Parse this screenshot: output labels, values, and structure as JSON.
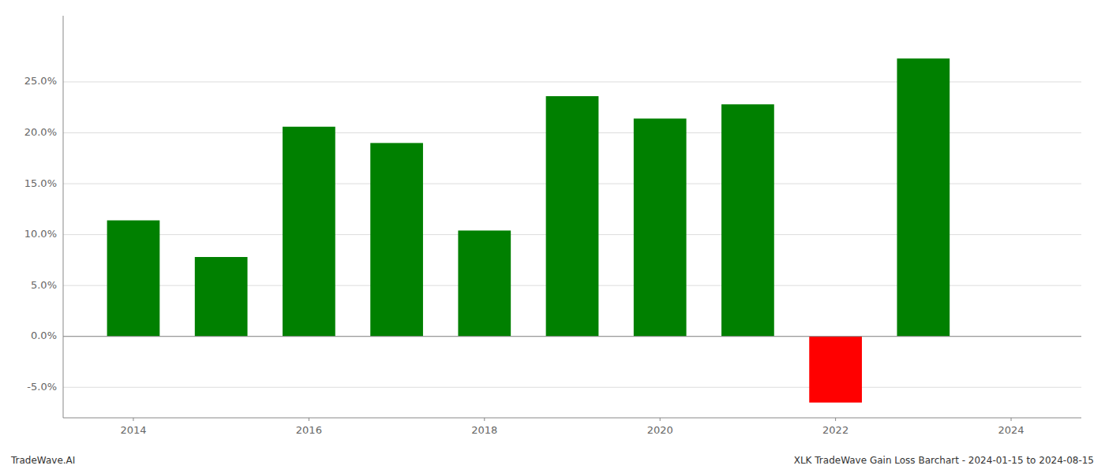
{
  "chart_data": {
    "type": "bar",
    "x": [
      2014,
      2015,
      2016,
      2017,
      2018,
      2019,
      2020,
      2021,
      2022,
      2023
    ],
    "values": [
      0.114,
      0.078,
      0.206,
      0.19,
      0.104,
      0.236,
      0.214,
      0.228,
      -0.065,
      0.273
    ],
    "colors": [
      "#008000",
      "#008000",
      "#008000",
      "#008000",
      "#008000",
      "#008000",
      "#008000",
      "#008000",
      "#ff0000",
      "#008000"
    ],
    "xlim": [
      2013.2,
      2024.8
    ],
    "xticks": [
      2014,
      2016,
      2018,
      2020,
      2022,
      2024
    ],
    "ylim": [
      -0.08,
      0.315
    ],
    "yticks": [
      {
        "value": -0.05,
        "label": "-5.0%"
      },
      {
        "value": 0.0,
        "label": "0.0%"
      },
      {
        "value": 0.05,
        "label": "5.0%"
      },
      {
        "value": 0.1,
        "label": "10.0%"
      },
      {
        "value": 0.15,
        "label": "15.0%"
      },
      {
        "value": 0.2,
        "label": "20.0%"
      },
      {
        "value": 0.25,
        "label": "25.0%"
      }
    ],
    "grid": true,
    "annotations": [
      "TradeWave.AI",
      "XLK TradeWave Gain Loss Barchart - 2024-01-15 to 2024-08-15"
    ]
  }
}
